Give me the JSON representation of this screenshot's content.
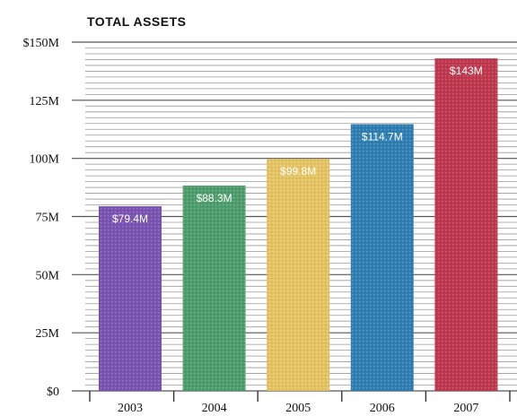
{
  "chart_data": {
    "type": "bar",
    "title": "TOTAL ASSETS",
    "categories": [
      "2003",
      "2004",
      "2005",
      "2006",
      "2007"
    ],
    "values": [
      79.4,
      88.3,
      99.8,
      114.7,
      143
    ],
    "data_labels": [
      "$79.4M",
      "$88.3M",
      "$99.8M",
      "$114.7M",
      "$143M"
    ],
    "ylim": [
      0,
      150
    ],
    "yticks": [
      {
        "value": 0,
        "label": "$0"
      },
      {
        "value": 25,
        "label": "25M"
      },
      {
        "value": 50,
        "label": "50M"
      },
      {
        "value": 75,
        "label": "75M"
      },
      {
        "value": 100,
        "label": "100M"
      },
      {
        "value": 125,
        "label": "125M"
      },
      {
        "value": 150,
        "label": "$150M"
      }
    ],
    "colors": [
      "#7b55b3",
      "#4e9e6e",
      "#e6c463",
      "#2f7fb2",
      "#c0394f"
    ],
    "grid": true,
    "legend": "none"
  }
}
